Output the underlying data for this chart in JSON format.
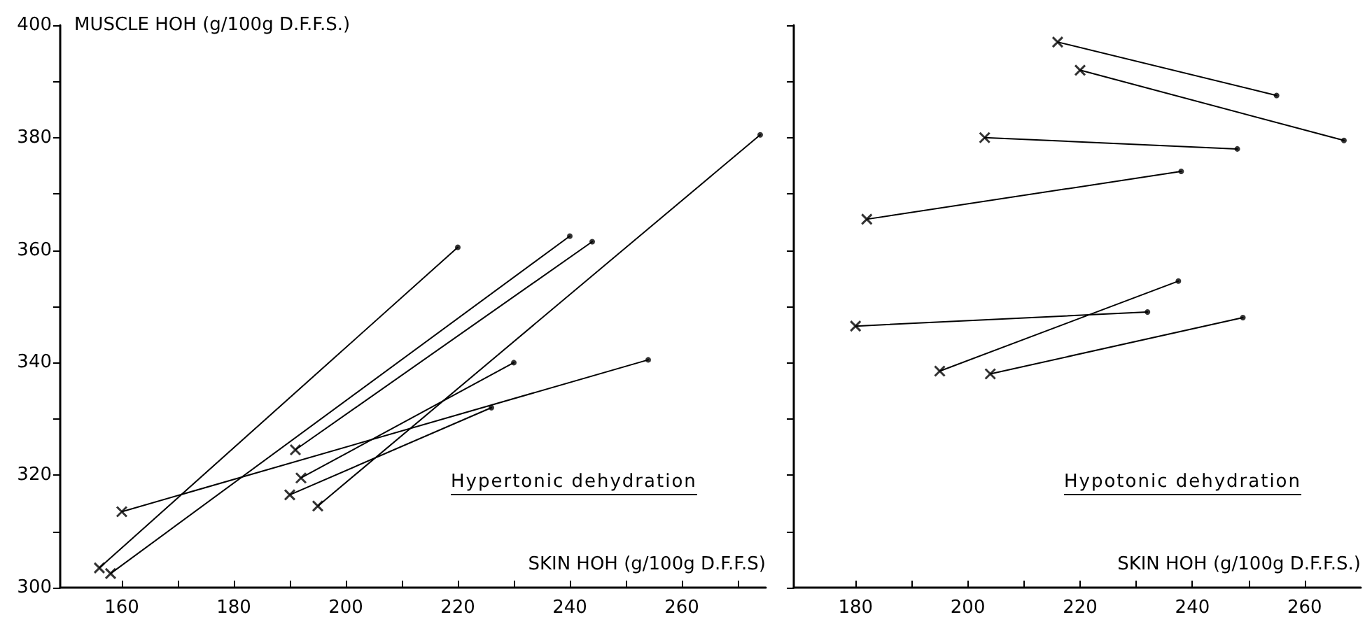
{
  "chart_data": [
    {
      "type": "line",
      "xlabel": "SKIN HOH (g/100g D.F.F.S)",
      "ylabel": "MUSCLE HOH (g/100g D.F.F.S.)",
      "annotations": [
        "Hypertonic dehydration"
      ],
      "xlim": [
        149,
        275
      ],
      "ylim": [
        300,
        400
      ],
      "xticks": [
        160,
        {
          "value": 170,
          "label": null
        },
        180,
        {
          "value": 190,
          "label": null
        },
        200,
        {
          "value": 210,
          "label": null
        },
        220,
        {
          "value": 230,
          "label": null
        },
        240,
        {
          "value": 250,
          "label": null
        },
        260,
        {
          "value": 270,
          "label": null
        }
      ],
      "yticks": [
        300,
        {
          "value": 310,
          "label": null
        },
        320,
        {
          "value": 330,
          "label": null
        },
        340,
        {
          "value": 350,
          "label": null
        },
        360,
        {
          "value": 370,
          "label": null
        },
        380,
        {
          "value": 390,
          "label": null
        },
        400
      ],
      "grid": false,
      "series": [
        {
          "type": "line",
          "marker": "none",
          "color": "#000000",
          "x": [
            156,
            220
          ],
          "values": [
            303.5,
            360.5
          ]
        },
        {
          "type": "line",
          "marker": "none",
          "color": "#000000",
          "x": [
            158,
            240
          ],
          "values": [
            302.5,
            362.5
          ]
        },
        {
          "type": "line",
          "marker": "none",
          "color": "#000000",
          "x": [
            160,
            254
          ],
          "values": [
            313.5,
            340.5
          ]
        },
        {
          "type": "line",
          "marker": "none",
          "color": "#000000",
          "x": [
            190,
            226
          ],
          "values": [
            316.5,
            332
          ]
        },
        {
          "type": "line",
          "marker": "none",
          "color": "#000000",
          "x": [
            191,
            244
          ],
          "values": [
            324.5,
            361.5
          ]
        },
        {
          "type": "line",
          "marker": "none",
          "color": "#000000",
          "x": [
            192,
            230
          ],
          "values": [
            319.5,
            340
          ]
        },
        {
          "type": "line",
          "marker": "none",
          "color": "#000000",
          "x": [
            195,
            274
          ],
          "values": [
            314.5,
            380.5
          ]
        },
        {
          "type": "scatter",
          "marker": "cross",
          "color": "#000000",
          "x": [
            156,
            158,
            160,
            190,
            191,
            192,
            195
          ],
          "values": [
            303.5,
            302.5,
            313.5,
            316.5,
            324.5,
            319.5,
            314.5
          ]
        },
        {
          "type": "scatter",
          "marker": "circle",
          "color": "#000000",
          "x": [
            220,
            240,
            254,
            226,
            244,
            230,
            274
          ],
          "values": [
            360.5,
            362.5,
            340.5,
            332,
            361.5,
            340,
            380.5
          ]
        }
      ]
    },
    {
      "type": "line",
      "xlabel": "SKIN HOH (g/100g D.F.F.S.)",
      "annotations": [
        "Hypotonic dehydration"
      ],
      "xlim": [
        169,
        270
      ],
      "ylim": [
        300,
        400
      ],
      "tick_labels": "x",
      "xticks": [
        180,
        {
          "value": 190,
          "label": null
        },
        200,
        {
          "value": 210,
          "label": null
        },
        220,
        {
          "value": 230,
          "label": null
        },
        240,
        {
          "value": 250,
          "label": null
        },
        260
      ],
      "yticks": [
        300,
        {
          "value": 310,
          "label": null
        },
        {
          "value": 320,
          "label": null
        },
        {
          "value": 330,
          "label": null
        },
        {
          "value": 340,
          "label": null
        },
        {
          "value": 350,
          "label": null
        },
        {
          "value": 360,
          "label": null
        },
        {
          "value": 370,
          "label": null
        },
        {
          "value": 380,
          "label": null
        },
        {
          "value": 390,
          "label": null
        },
        {
          "value": 400,
          "label": null
        }
      ],
      "grid": false,
      "series": [
        {
          "type": "line",
          "marker": "none",
          "color": "#000000",
          "x": [
            216,
            255
          ],
          "values": [
            397,
            387.5
          ]
        },
        {
          "type": "line",
          "marker": "none",
          "color": "#000000",
          "x": [
            220,
            267
          ],
          "values": [
            392,
            379.5
          ]
        },
        {
          "type": "line",
          "marker": "none",
          "color": "#000000",
          "x": [
            203,
            248
          ],
          "values": [
            380,
            378
          ]
        },
        {
          "type": "line",
          "marker": "none",
          "color": "#000000",
          "x": [
            182,
            238
          ],
          "values": [
            365.5,
            374
          ]
        },
        {
          "type": "line",
          "marker": "none",
          "color": "#000000",
          "x": [
            180,
            232
          ],
          "values": [
            346.5,
            349
          ]
        },
        {
          "type": "line",
          "marker": "none",
          "color": "#000000",
          "x": [
            195,
            237.5
          ],
          "values": [
            338.5,
            354.5
          ]
        },
        {
          "type": "line",
          "marker": "none",
          "color": "#000000",
          "x": [
            204,
            249
          ],
          "values": [
            338,
            348
          ]
        },
        {
          "type": "scatter",
          "marker": "cross",
          "color": "#000000",
          "x": [
            216,
            220,
            203,
            182,
            180,
            195,
            204
          ],
          "values": [
            397,
            392,
            380,
            365.5,
            346.5,
            338.5,
            338
          ]
        },
        {
          "type": "scatter",
          "marker": "circle",
          "color": "#000000",
          "x": [
            255,
            267,
            248,
            238,
            232,
            237.5,
            249
          ],
          "values": [
            387.5,
            379.5,
            378,
            374,
            349,
            354.5,
            348
          ]
        }
      ]
    }
  ]
}
